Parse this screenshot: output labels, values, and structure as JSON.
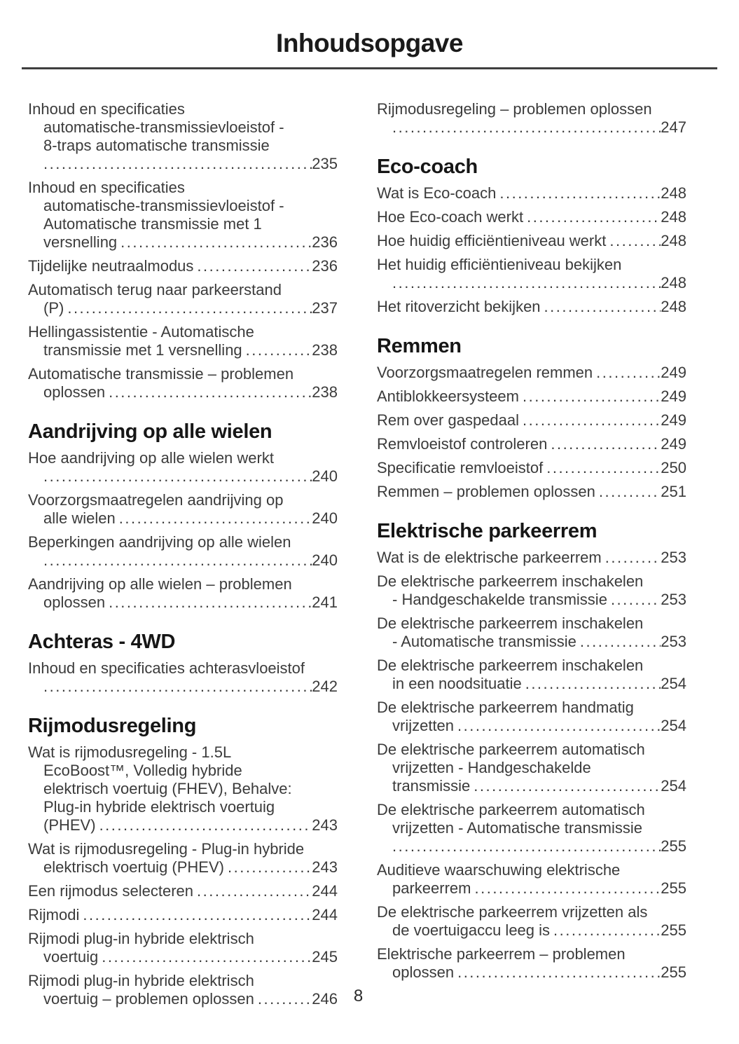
{
  "page_title": "Inhoudsopgave",
  "footer": {
    "page_number": "8"
  },
  "toc": {
    "columns": [
      {
        "side": "left",
        "sections": [
          {
            "title": null,
            "entries": [
              {
                "pre": [
                  "Inhoud en specificaties",
                  "automatische-transmissievloeistof -",
                  "8-traps automatische transmissie"
                ],
                "last": "",
                "page": "235"
              },
              {
                "pre": [
                  "Inhoud en specificaties",
                  "automatische-transmissievloeistof -",
                  "Automatische transmissie met 1"
                ],
                "last": "versnelling",
                "page": "236"
              },
              {
                "pre": [],
                "last": "Tijdelijke neutraalmodus",
                "page": "236"
              },
              {
                "pre": [
                  "Automatisch terug naar parkeerstand"
                ],
                "last": "(P)",
                "page": "237"
              },
              {
                "pre": [
                  "Hellingassistentie - Automatische"
                ],
                "last": "transmissie met 1 versnelling",
                "page": "238"
              },
              {
                "pre": [
                  "Automatische transmissie – problemen"
                ],
                "last": "oplossen",
                "page": "238"
              }
            ]
          },
          {
            "title": "Aandrijving op alle wielen",
            "entries": [
              {
                "pre": [
                  "Hoe aandrijving op alle wielen werkt"
                ],
                "last": "",
                "page": "240"
              },
              {
                "pre": [
                  "Voorzorgsmaatregelen aandrijving op"
                ],
                "last": "alle wielen",
                "page": "240"
              },
              {
                "pre": [
                  "Beperkingen aandrijving op alle wielen"
                ],
                "last": "",
                "page": "240"
              },
              {
                "pre": [
                  "Aandrijving op alle wielen – problemen"
                ],
                "last": "oplossen",
                "page": "241"
              }
            ]
          },
          {
            "title": "Achteras - 4WD",
            "entries": [
              {
                "pre": [
                  "Inhoud en specificaties achterasvloeistof"
                ],
                "last": "",
                "page": "242"
              }
            ]
          },
          {
            "title": "Rijmodusregeling",
            "entries": [
              {
                "pre": [
                  "Wat is rijmodusregeling - 1.5L",
                  "EcoBoost™, Volledig hybride",
                  "elektrisch voertuig (FHEV), Behalve:",
                  "Plug-in hybride elektrisch voertuig"
                ],
                "last": "(PHEV)",
                "page": "243"
              },
              {
                "pre": [
                  "Wat is rijmodusregeling - Plug-in hybride"
                ],
                "last": "elektrisch voertuig (PHEV)",
                "page": "243"
              },
              {
                "pre": [],
                "last": "Een rijmodus selecteren",
                "page": "244"
              },
              {
                "pre": [],
                "last": "Rijmodi",
                "page": "244"
              },
              {
                "pre": [
                  "Rijmodi plug-in hybride elektrisch"
                ],
                "last": "voertuig",
                "page": "245"
              },
              {
                "pre": [
                  "Rijmodi plug-in hybride elektrisch"
                ],
                "last": "voertuig – problemen oplossen",
                "page": "246"
              }
            ]
          }
        ]
      },
      {
        "side": "right",
        "sections": [
          {
            "title": null,
            "entries": [
              {
                "pre": [
                  "Rijmodusregeling – problemen oplossen"
                ],
                "last": "",
                "page": "247"
              }
            ]
          },
          {
            "title": "Eco-coach",
            "entries": [
              {
                "pre": [],
                "last": "Wat is Eco-coach",
                "page": "248"
              },
              {
                "pre": [],
                "last": "Hoe Eco-coach werkt",
                "page": "248"
              },
              {
                "pre": [],
                "last": "Hoe huidig efficiëntieniveau werkt",
                "page": "248"
              },
              {
                "pre": [
                  "Het huidig efficiëntieniveau bekijken"
                ],
                "last": "",
                "page": "248"
              },
              {
                "pre": [],
                "last": "Het ritoverzicht bekijken",
                "page": "248"
              }
            ]
          },
          {
            "title": "Remmen",
            "entries": [
              {
                "pre": [],
                "last": "Voorzorgsmaatregelen remmen",
                "page": "249"
              },
              {
                "pre": [],
                "last": "Antiblokkeersysteem",
                "page": "249"
              },
              {
                "pre": [],
                "last": "Rem over gaspedaal",
                "page": "249"
              },
              {
                "pre": [],
                "last": "Remvloeistof controleren",
                "page": "249"
              },
              {
                "pre": [],
                "last": "Specificatie remvloeistof",
                "page": "250"
              },
              {
                "pre": [],
                "last": "Remmen – problemen oplossen",
                "page": "251"
              }
            ]
          },
          {
            "title": "Elektrische parkeerrem",
            "entries": [
              {
                "pre": [],
                "last": "Wat is de elektrische parkeerrem",
                "page": "253"
              },
              {
                "pre": [
                  "De elektrische parkeerrem inschakelen"
                ],
                "last": "- Handgeschakelde transmissie",
                "page": "253"
              },
              {
                "pre": [
                  "De elektrische parkeerrem inschakelen"
                ],
                "last": "- Automatische transmissie",
                "page": "253"
              },
              {
                "pre": [
                  "De elektrische parkeerrem inschakelen"
                ],
                "last": "in een noodsituatie",
                "page": "254"
              },
              {
                "pre": [
                  "De elektrische parkeerrem handmatig"
                ],
                "last": "vrijzetten",
                "page": "254"
              },
              {
                "pre": [
                  "De elektrische parkeerrem automatisch",
                  "vrijzetten - Handgeschakelde"
                ],
                "last": "transmissie",
                "page": "254"
              },
              {
                "pre": [
                  "De elektrische parkeerrem automatisch",
                  "vrijzetten - Automatische transmissie"
                ],
                "last": "",
                "page": "255"
              },
              {
                "pre": [
                  "Auditieve waarschuwing elektrische"
                ],
                "last": "parkeerrem",
                "page": "255"
              },
              {
                "pre": [
                  "De elektrische parkeerrem vrijzetten als"
                ],
                "last": "de voertuigaccu leeg is",
                "page": "255"
              },
              {
                "pre": [
                  "Elektrische parkeerrem – problemen"
                ],
                "last": "oplossen",
                "page": "255"
              }
            ]
          }
        ]
      }
    ]
  }
}
